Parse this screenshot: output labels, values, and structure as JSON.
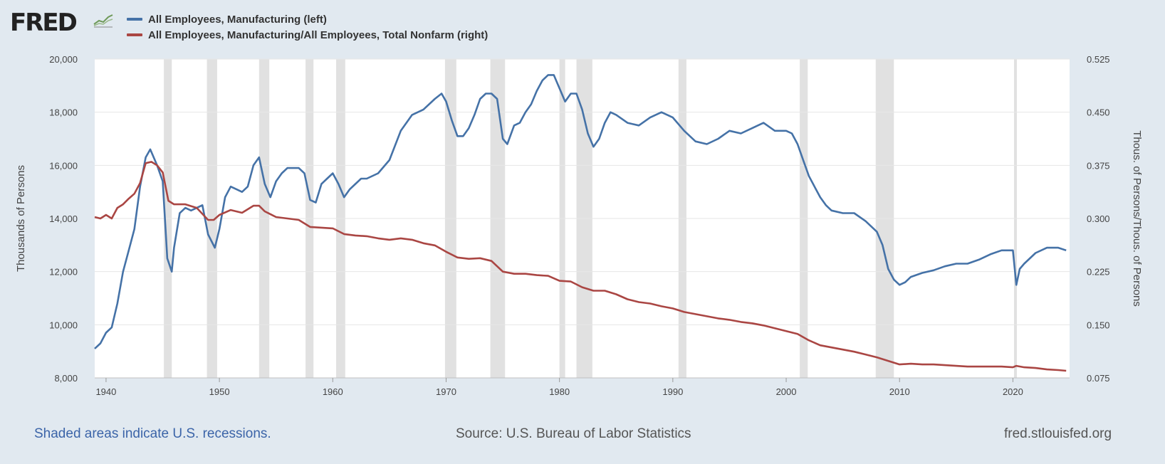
{
  "logo": {
    "text": "FRED",
    "icon": "chart-line-icon"
  },
  "legend": [
    {
      "label": "All Employees, Manufacturing (left)",
      "color": "#4572a7"
    },
    {
      "label": "All Employees, Manufacturing/All Employees, Total Nonfarm (right)",
      "color": "#aa4643"
    }
  ],
  "footer": {
    "recession_note": "Shaded areas indicate U.S. recessions.",
    "source": "Source: U.S. Bureau of Labor Statistics",
    "site": "fred.stlouisfed.org"
  },
  "chart_data": {
    "type": "line",
    "xlabel": "",
    "ylabel_left": "Thousands of Persons",
    "ylabel_right": "Thous. of Persons/Thous. of Persons",
    "xlim": [
      1939,
      2025
    ],
    "ylim_left": [
      8000,
      20000
    ],
    "ylim_right": [
      0.075,
      0.525
    ],
    "x_ticks": [
      1940,
      1950,
      1960,
      1970,
      1980,
      1990,
      2000,
      2010,
      2020
    ],
    "y_left_ticks": [
      "8,000",
      "10,000",
      "12,000",
      "14,000",
      "16,000",
      "18,000",
      "20,000"
    ],
    "y_right_ticks": [
      "0.075",
      "0.150",
      "0.225",
      "0.300",
      "0.375",
      "0.450",
      "0.525"
    ],
    "grid": true,
    "recessions": [
      [
        1945.1,
        1945.8
      ],
      [
        1948.9,
        1949.8
      ],
      [
        1953.5,
        1954.4
      ],
      [
        1957.6,
        1958.3
      ],
      [
        1960.3,
        1961.1
      ],
      [
        1969.9,
        1970.9
      ],
      [
        1973.9,
        1975.2
      ],
      [
        1980.0,
        1980.5
      ],
      [
        1981.5,
        1982.9
      ],
      [
        1990.5,
        1991.2
      ],
      [
        2001.2,
        2001.9
      ],
      [
        2007.9,
        2009.5
      ],
      [
        2020.1,
        2020.3
      ]
    ],
    "series": [
      {
        "name": "All Employees, Manufacturing (left)",
        "axis": "left",
        "color": "#4572a7",
        "points": [
          [
            1939.0,
            9100
          ],
          [
            1939.5,
            9300
          ],
          [
            1940.0,
            9700
          ],
          [
            1940.5,
            9900
          ],
          [
            1941.0,
            10800
          ],
          [
            1941.5,
            12000
          ],
          [
            1942.0,
            12800
          ],
          [
            1942.5,
            13600
          ],
          [
            1943.0,
            15200
          ],
          [
            1943.5,
            16300
          ],
          [
            1943.9,
            16600
          ],
          [
            1944.5,
            16000
          ],
          [
            1945.0,
            15400
          ],
          [
            1945.4,
            12500
          ],
          [
            1945.8,
            12000
          ],
          [
            1946.0,
            12900
          ],
          [
            1946.5,
            14200
          ],
          [
            1947.0,
            14400
          ],
          [
            1947.5,
            14300
          ],
          [
            1948.0,
            14400
          ],
          [
            1948.5,
            14500
          ],
          [
            1949.0,
            13400
          ],
          [
            1949.6,
            12900
          ],
          [
            1950.0,
            13600
          ],
          [
            1950.5,
            14800
          ],
          [
            1951.0,
            15200
          ],
          [
            1951.5,
            15100
          ],
          [
            1952.0,
            15000
          ],
          [
            1952.5,
            15200
          ],
          [
            1953.0,
            16000
          ],
          [
            1953.5,
            16300
          ],
          [
            1954.0,
            15300
          ],
          [
            1954.5,
            14800
          ],
          [
            1955.0,
            15400
          ],
          [
            1955.5,
            15700
          ],
          [
            1956.0,
            15900
          ],
          [
            1956.5,
            15900
          ],
          [
            1957.0,
            15900
          ],
          [
            1957.5,
            15700
          ],
          [
            1958.0,
            14700
          ],
          [
            1958.5,
            14600
          ],
          [
            1959.0,
            15300
          ],
          [
            1959.5,
            15500
          ],
          [
            1960.0,
            15700
          ],
          [
            1960.5,
            15300
          ],
          [
            1961.0,
            14800
          ],
          [
            1961.5,
            15100
          ],
          [
            1962.0,
            15300
          ],
          [
            1962.5,
            15500
          ],
          [
            1963.0,
            15500
          ],
          [
            1964.0,
            15700
          ],
          [
            1965.0,
            16200
          ],
          [
            1966.0,
            17300
          ],
          [
            1967.0,
            17900
          ],
          [
            1968.0,
            18100
          ],
          [
            1969.0,
            18500
          ],
          [
            1969.6,
            18700
          ],
          [
            1970.0,
            18400
          ],
          [
            1970.5,
            17700
          ],
          [
            1971.0,
            17100
          ],
          [
            1971.5,
            17100
          ],
          [
            1972.0,
            17400
          ],
          [
            1972.5,
            17900
          ],
          [
            1973.0,
            18500
          ],
          [
            1973.5,
            18700
          ],
          [
            1974.0,
            18700
          ],
          [
            1974.5,
            18500
          ],
          [
            1975.0,
            17000
          ],
          [
            1975.4,
            16800
          ],
          [
            1976.0,
            17500
          ],
          [
            1976.5,
            17600
          ],
          [
            1977.0,
            18000
          ],
          [
            1977.5,
            18300
          ],
          [
            1978.0,
            18800
          ],
          [
            1978.5,
            19200
          ],
          [
            1979.0,
            19400
          ],
          [
            1979.5,
            19400
          ],
          [
            1980.0,
            18900
          ],
          [
            1980.5,
            18400
          ],
          [
            1981.0,
            18700
          ],
          [
            1981.5,
            18700
          ],
          [
            1982.0,
            18100
          ],
          [
            1982.5,
            17200
          ],
          [
            1983.0,
            16700
          ],
          [
            1983.5,
            17000
          ],
          [
            1984.0,
            17600
          ],
          [
            1984.5,
            18000
          ],
          [
            1985.0,
            17900
          ],
          [
            1986.0,
            17600
          ],
          [
            1987.0,
            17500
          ],
          [
            1988.0,
            17800
          ],
          [
            1989.0,
            18000
          ],
          [
            1990.0,
            17800
          ],
          [
            1991.0,
            17300
          ],
          [
            1992.0,
            16900
          ],
          [
            1993.0,
            16800
          ],
          [
            1994.0,
            17000
          ],
          [
            1995.0,
            17300
          ],
          [
            1996.0,
            17200
          ],
          [
            1997.0,
            17400
          ],
          [
            1998.0,
            17600
          ],
          [
            1999.0,
            17300
          ],
          [
            2000.0,
            17300
          ],
          [
            2000.5,
            17200
          ],
          [
            2001.0,
            16800
          ],
          [
            2001.5,
            16200
          ],
          [
            2002.0,
            15600
          ],
          [
            2002.5,
            15200
          ],
          [
            2003.0,
            14800
          ],
          [
            2003.5,
            14500
          ],
          [
            2004.0,
            14300
          ],
          [
            2005.0,
            14200
          ],
          [
            2006.0,
            14200
          ],
          [
            2007.0,
            13900
          ],
          [
            2008.0,
            13500
          ],
          [
            2008.5,
            13000
          ],
          [
            2009.0,
            12100
          ],
          [
            2009.5,
            11700
          ],
          [
            2010.0,
            11500
          ],
          [
            2010.5,
            11600
          ],
          [
            2011.0,
            11800
          ],
          [
            2012.0,
            11950
          ],
          [
            2013.0,
            12050
          ],
          [
            2014.0,
            12200
          ],
          [
            2015.0,
            12300
          ],
          [
            2016.0,
            12300
          ],
          [
            2017.0,
            12450
          ],
          [
            2018.0,
            12650
          ],
          [
            2019.0,
            12800
          ],
          [
            2020.0,
            12800
          ],
          [
            2020.3,
            11500
          ],
          [
            2020.6,
            12100
          ],
          [
            2021.0,
            12300
          ],
          [
            2022.0,
            12700
          ],
          [
            2023.0,
            12900
          ],
          [
            2024.0,
            12900
          ],
          [
            2024.7,
            12800
          ]
        ]
      },
      {
        "name": "All Employees, Manufacturing/All Employees, Total Nonfarm (right)",
        "axis": "right",
        "color": "#aa4643",
        "points": [
          [
            1939.0,
            0.302
          ],
          [
            1939.5,
            0.3
          ],
          [
            1940.0,
            0.305
          ],
          [
            1940.5,
            0.3
          ],
          [
            1941.0,
            0.315
          ],
          [
            1941.5,
            0.32
          ],
          [
            1942.0,
            0.328
          ],
          [
            1942.5,
            0.335
          ],
          [
            1943.0,
            0.35
          ],
          [
            1943.5,
            0.378
          ],
          [
            1944.0,
            0.38
          ],
          [
            1944.5,
            0.375
          ],
          [
            1945.0,
            0.365
          ],
          [
            1945.5,
            0.325
          ],
          [
            1946.0,
            0.32
          ],
          [
            1946.5,
            0.32
          ],
          [
            1947.0,
            0.32
          ],
          [
            1948.0,
            0.315
          ],
          [
            1949.0,
            0.298
          ],
          [
            1949.5,
            0.298
          ],
          [
            1950.0,
            0.305
          ],
          [
            1951.0,
            0.312
          ],
          [
            1952.0,
            0.308
          ],
          [
            1953.0,
            0.318
          ],
          [
            1953.5,
            0.318
          ],
          [
            1954.0,
            0.31
          ],
          [
            1955.0,
            0.302
          ],
          [
            1956.0,
            0.3
          ],
          [
            1957.0,
            0.298
          ],
          [
            1958.0,
            0.288
          ],
          [
            1959.0,
            0.287
          ],
          [
            1960.0,
            0.286
          ],
          [
            1961.0,
            0.278
          ],
          [
            1962.0,
            0.276
          ],
          [
            1963.0,
            0.275
          ],
          [
            1964.0,
            0.272
          ],
          [
            1965.0,
            0.27
          ],
          [
            1966.0,
            0.272
          ],
          [
            1967.0,
            0.27
          ],
          [
            1968.0,
            0.265
          ],
          [
            1969.0,
            0.262
          ],
          [
            1970.0,
            0.253
          ],
          [
            1971.0,
            0.245
          ],
          [
            1972.0,
            0.243
          ],
          [
            1973.0,
            0.244
          ],
          [
            1974.0,
            0.24
          ],
          [
            1975.0,
            0.225
          ],
          [
            1976.0,
            0.222
          ],
          [
            1977.0,
            0.222
          ],
          [
            1978.0,
            0.22
          ],
          [
            1979.0,
            0.219
          ],
          [
            1980.0,
            0.212
          ],
          [
            1981.0,
            0.211
          ],
          [
            1982.0,
            0.203
          ],
          [
            1983.0,
            0.198
          ],
          [
            1984.0,
            0.198
          ],
          [
            1985.0,
            0.193
          ],
          [
            1986.0,
            0.186
          ],
          [
            1987.0,
            0.182
          ],
          [
            1988.0,
            0.18
          ],
          [
            1989.0,
            0.176
          ],
          [
            1990.0,
            0.173
          ],
          [
            1991.0,
            0.168
          ],
          [
            1992.0,
            0.165
          ],
          [
            1993.0,
            0.162
          ],
          [
            1994.0,
            0.159
          ],
          [
            1995.0,
            0.157
          ],
          [
            1996.0,
            0.154
          ],
          [
            1997.0,
            0.152
          ],
          [
            1998.0,
            0.149
          ],
          [
            1999.0,
            0.145
          ],
          [
            2000.0,
            0.141
          ],
          [
            2001.0,
            0.137
          ],
          [
            2002.0,
            0.128
          ],
          [
            2003.0,
            0.121
          ],
          [
            2004.0,
            0.118
          ],
          [
            2005.0,
            0.115
          ],
          [
            2006.0,
            0.112
          ],
          [
            2007.0,
            0.108
          ],
          [
            2008.0,
            0.104
          ],
          [
            2009.0,
            0.099
          ],
          [
            2010.0,
            0.094
          ],
          [
            2011.0,
            0.095
          ],
          [
            2012.0,
            0.094
          ],
          [
            2013.0,
            0.094
          ],
          [
            2014.0,
            0.093
          ],
          [
            2015.0,
            0.092
          ],
          [
            2016.0,
            0.091
          ],
          [
            2017.0,
            0.091
          ],
          [
            2018.0,
            0.091
          ],
          [
            2019.0,
            0.091
          ],
          [
            2020.0,
            0.09
          ],
          [
            2020.3,
            0.092
          ],
          [
            2021.0,
            0.09
          ],
          [
            2022.0,
            0.089
          ],
          [
            2023.0,
            0.087
          ],
          [
            2024.0,
            0.086
          ],
          [
            2024.7,
            0.085
          ]
        ]
      }
    ]
  }
}
